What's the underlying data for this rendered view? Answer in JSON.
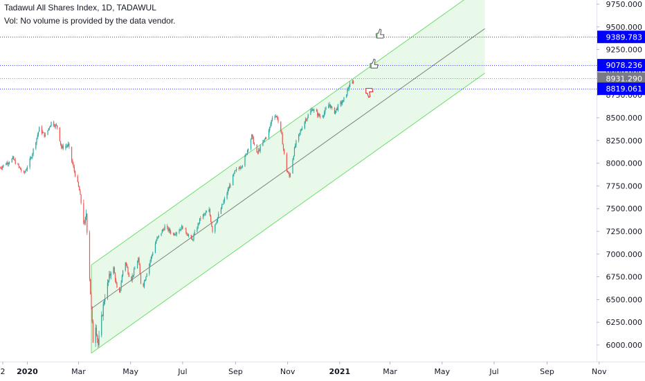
{
  "legend": {
    "title": "Tadawul All Shares Index, 1D, TADAWUL",
    "volume_note": "Vol: No volume is provided by the data vendor."
  },
  "colors": {
    "up": "#26a69a",
    "down": "#ef5350",
    "channel_line": "#6dde6d",
    "channel_fill": "rgba(76,205,76,0.12)",
    "median_line": "#808080",
    "hline": "#3d3dff",
    "label_blue": "#0000ff",
    "label_gray": "#787b86",
    "axis_border": "#e0e3eb",
    "grid": "#f0f3fa",
    "icon_green": "#6aa86a",
    "icon_red": "#d23b3b"
  },
  "chart_data": {
    "type": "candlestick",
    "title": "Tadawul All Shares Index, 1D, TADAWUL",
    "y_axis_ticks": [
      6000,
      6250,
      6500,
      6750,
      7000,
      7250,
      7500,
      7750,
      8000,
      8250,
      8500,
      8750,
      9000,
      9250,
      9500,
      9750
    ],
    "y_axis_tick_labels": [
      "6000.000",
      "6250.000",
      "6500.000",
      "6750.000",
      "7000.000",
      "7250.000",
      "7500.000",
      "7750.000",
      "8000.000",
      "8250.000",
      "8500.000",
      "8750.000",
      "9000.000",
      "9250.000",
      "9500.000",
      "9750.000"
    ],
    "ylim": [
      5900,
      9780
    ],
    "x_axis_labels": [
      "2",
      "2020",
      "Mar",
      "May",
      "Jul",
      "Sep",
      "Nov",
      "2021",
      "Mar",
      "May",
      "Jul",
      "Sep",
      "Nov"
    ],
    "x_axis_bold": [
      "2020",
      "2021"
    ],
    "xlim": [
      "2019-11-30",
      "2021-12-15"
    ],
    "price_levels": [
      {
        "value": 9389.783,
        "label": "9389.783",
        "style": "blue"
      },
      {
        "value": 9078.236,
        "label": "9078.236",
        "style": "blue"
      },
      {
        "value": 8931.29,
        "label": "8931.290",
        "style": "gray"
      },
      {
        "value": 8819.061,
        "label": "8819.061",
        "style": "blue"
      }
    ],
    "channel": {
      "start_date": "2020-03-16",
      "end_date": "2021-06-20",
      "upper": [
        6880,
        9960
      ],
      "median": [
        6400,
        9480
      ],
      "lower": [
        5910,
        8990
      ]
    },
    "ohlc_key_points": [
      [
        "2019-11-30",
        7950
      ],
      [
        "2019-12-15",
        8050
      ],
      [
        "2019-12-28",
        7880
      ],
      [
        "2020-01-05",
        8050
      ],
      [
        "2020-01-15",
        8380
      ],
      [
        "2020-01-22",
        8300
      ],
      [
        "2020-01-29",
        8450
      ],
      [
        "2020-02-05",
        8400
      ],
      [
        "2020-02-10",
        8170
      ],
      [
        "2020-02-18",
        8200
      ],
      [
        "2020-02-24",
        7950
      ],
      [
        "2020-03-02",
        7700
      ],
      [
        "2020-03-08",
        7300
      ],
      [
        "2020-03-10",
        7450
      ],
      [
        "2020-03-16",
        6400
      ],
      [
        "2020-03-18",
        6050
      ],
      [
        "2020-03-20",
        6300
      ],
      [
        "2020-03-24",
        6000
      ],
      [
        "2020-03-31",
        6500
      ],
      [
        "2020-04-10",
        6900
      ],
      [
        "2020-04-17",
        6500
      ],
      [
        "2020-04-24",
        6950
      ],
      [
        "2020-05-01",
        6700
      ],
      [
        "2020-05-10",
        6950
      ],
      [
        "2020-05-14",
        6600
      ],
      [
        "2020-05-20",
        6800
      ],
      [
        "2020-05-31",
        7150
      ],
      [
        "2020-06-10",
        7300
      ],
      [
        "2020-06-20",
        7220
      ],
      [
        "2020-07-01",
        7300
      ],
      [
        "2020-07-12",
        7150
      ],
      [
        "2020-07-22",
        7400
      ],
      [
        "2020-08-01",
        7480
      ],
      [
        "2020-08-05",
        7260
      ],
      [
        "2020-08-15",
        7500
      ],
      [
        "2020-08-31",
        7900
      ],
      [
        "2020-09-10",
        8000
      ],
      [
        "2020-09-20",
        8300
      ],
      [
        "2020-09-26",
        8100
      ],
      [
        "2020-10-10",
        8350
      ],
      [
        "2020-10-15",
        8550
      ],
      [
        "2020-10-20",
        8500
      ],
      [
        "2020-10-25",
        8300
      ],
      [
        "2020-10-30",
        7950
      ],
      [
        "2020-11-03",
        7850
      ],
      [
        "2020-11-10",
        8200
      ],
      [
        "2020-11-20",
        8450
      ],
      [
        "2020-11-30",
        8600
      ],
      [
        "2020-12-10",
        8500
      ],
      [
        "2020-12-20",
        8650
      ],
      [
        "2020-12-25",
        8550
      ],
      [
        "2021-01-01",
        8650
      ],
      [
        "2021-01-05",
        8680
      ],
      [
        "2021-01-08",
        8750
      ],
      [
        "2021-01-12",
        8850
      ],
      [
        "2021-01-17",
        8900
      ]
    ],
    "icons": [
      {
        "name": "thumbs-up",
        "date": "2021-02-17",
        "value": 9430
      },
      {
        "name": "thumbs-up",
        "date": "2021-02-10",
        "value": 9100
      },
      {
        "name": "thumbs-down",
        "date": "2021-02-04",
        "value": 8770
      }
    ]
  }
}
